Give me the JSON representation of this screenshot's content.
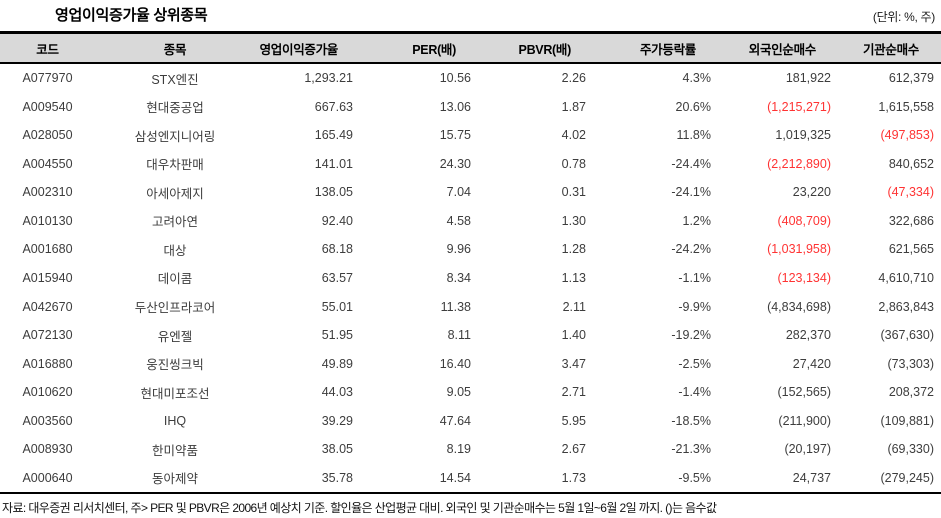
{
  "title": "영업이익증가율 상위종목",
  "unit_label": "(단위: %, 주)",
  "colors": {
    "negative_red": "#ff3333",
    "header_bg": "#d9d9d9",
    "border": "#000000",
    "body_text": "#3d3d3d"
  },
  "table": {
    "columns": [
      "코드",
      "종목",
      "영업이익증가율",
      "PER(배)",
      "PBVR(배)",
      "주가등락률",
      "외국인순매수",
      "기관순매수"
    ],
    "rows": [
      {
        "cells": [
          "A077970",
          "STX엔진",
          "1,293.21",
          "10.56",
          "2.26",
          "4.3%",
          "181,922",
          "612,379"
        ],
        "red": []
      },
      {
        "cells": [
          "A009540",
          "현대중공업",
          "667.63",
          "13.06",
          "1.87",
          "20.6%",
          "(1,215,271)",
          "1,615,558"
        ],
        "red": [
          6
        ]
      },
      {
        "cells": [
          "A028050",
          "삼성엔지니어링",
          "165.49",
          "15.75",
          "4.02",
          "11.8%",
          "1,019,325",
          "(497,853)"
        ],
        "red": [
          7
        ]
      },
      {
        "cells": [
          "A004550",
          "대우차판매",
          "141.01",
          "24.30",
          "0.78",
          "-24.4%",
          "(2,212,890)",
          "840,652"
        ],
        "red": [
          6
        ]
      },
      {
        "cells": [
          "A002310",
          "아세아제지",
          "138.05",
          "7.04",
          "0.31",
          "-24.1%",
          "23,220",
          "(47,334)"
        ],
        "red": [
          7
        ]
      },
      {
        "cells": [
          "A010130",
          "고려아연",
          "92.40",
          "4.58",
          "1.30",
          "1.2%",
          "(408,709)",
          "322,686"
        ],
        "red": [
          6
        ]
      },
      {
        "cells": [
          "A001680",
          "대상",
          "68.18",
          "9.96",
          "1.28",
          "-24.2%",
          "(1,031,958)",
          "621,565"
        ],
        "red": [
          6
        ]
      },
      {
        "cells": [
          "A015940",
          "데이콤",
          "63.57",
          "8.34",
          "1.13",
          "-1.1%",
          "(123,134)",
          "4,610,710"
        ],
        "red": [
          6
        ]
      },
      {
        "cells": [
          "A042670",
          "두산인프라코어",
          "55.01",
          "11.38",
          "2.11",
          "-9.9%",
          "(4,834,698)",
          "2,863,843"
        ],
        "red": []
      },
      {
        "cells": [
          "A072130",
          "유엔젤",
          "51.95",
          "8.11",
          "1.40",
          "-19.2%",
          "282,370",
          "(367,630)"
        ],
        "red": []
      },
      {
        "cells": [
          "A016880",
          "웅진씽크빅",
          "49.89",
          "16.40",
          "3.47",
          "-2.5%",
          "27,420",
          "(73,303)"
        ],
        "red": []
      },
      {
        "cells": [
          "A010620",
          "현대미포조선",
          "44.03",
          "9.05",
          "2.71",
          "-1.4%",
          "(152,565)",
          "208,372"
        ],
        "red": []
      },
      {
        "cells": [
          "A003560",
          "IHQ",
          "39.29",
          "47.64",
          "5.95",
          "-18.5%",
          "(211,900)",
          "(109,881)"
        ],
        "red": []
      },
      {
        "cells": [
          "A008930",
          "한미약품",
          "38.05",
          "8.19",
          "2.67",
          "-21.3%",
          "(20,197)",
          "(69,330)"
        ],
        "red": []
      },
      {
        "cells": [
          "A000640",
          "동아제약",
          "35.78",
          "14.54",
          "1.73",
          "-9.5%",
          "24,737",
          "(279,245)"
        ],
        "red": []
      }
    ]
  },
  "footer": "자료: 대우증권 리서치센터, 주> PER 및 PBVR은 2006년 예상치 기준. 할인율은 산업평균 대비. 외국인 및 기관순매수는 5월 1일~6월 2일 까지. ()는 음수값"
}
